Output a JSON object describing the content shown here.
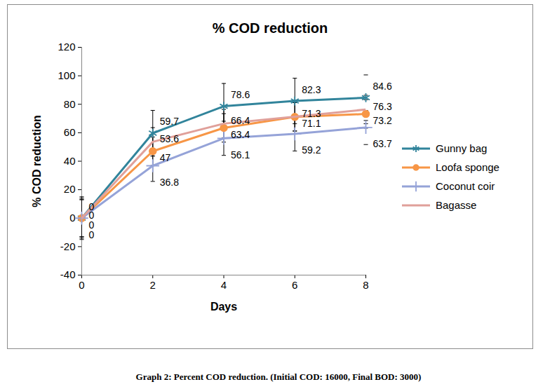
{
  "chart_data": {
    "type": "line",
    "title": "% COD reduction",
    "caption": "Graph 2: Percent COD reduction.  (Initial COD: 16000, Final BOD: 3000)",
    "x_label": "Days",
    "y_label": "% COD reduction",
    "x": [
      0,
      2,
      4,
      6,
      8
    ],
    "xlim": [
      0,
      8
    ],
    "xticks": [
      0,
      2,
      4,
      6,
      8
    ],
    "ylim": [
      -40,
      120
    ],
    "yticks": [
      -40,
      -20,
      0,
      20,
      40,
      60,
      80,
      100,
      120
    ],
    "grid": false,
    "legend": "right",
    "data_labels": true,
    "series": [
      {
        "name": "Gunny bag",
        "color": "#31849b",
        "marker": "asterisk",
        "values": [
          0,
          59.7,
          78.6,
          82.3,
          84.6
        ],
        "errors": [
          15,
          16,
          16,
          16,
          16
        ]
      },
      {
        "name": "Loofa sponge",
        "color": "#f79646",
        "marker": "circle",
        "values": [
          0,
          47,
          63.4,
          71.1,
          73.2
        ],
        "errors": [
          13,
          10,
          10,
          10,
          10
        ]
      },
      {
        "name": "Coconut coir",
        "color": "#95a3d8",
        "marker": "plus",
        "values": [
          0,
          36.8,
          56.1,
          59.2,
          63.7
        ],
        "errors": [
          13,
          11,
          12,
          12,
          12
        ]
      },
      {
        "name": "Bagasse",
        "color": "#e0a09a",
        "marker": "none",
        "values": [
          0,
          53.6,
          66.4,
          71.3,
          76.3
        ],
        "errors": [
          14,
          10,
          10,
          10,
          10
        ]
      }
    ]
  }
}
